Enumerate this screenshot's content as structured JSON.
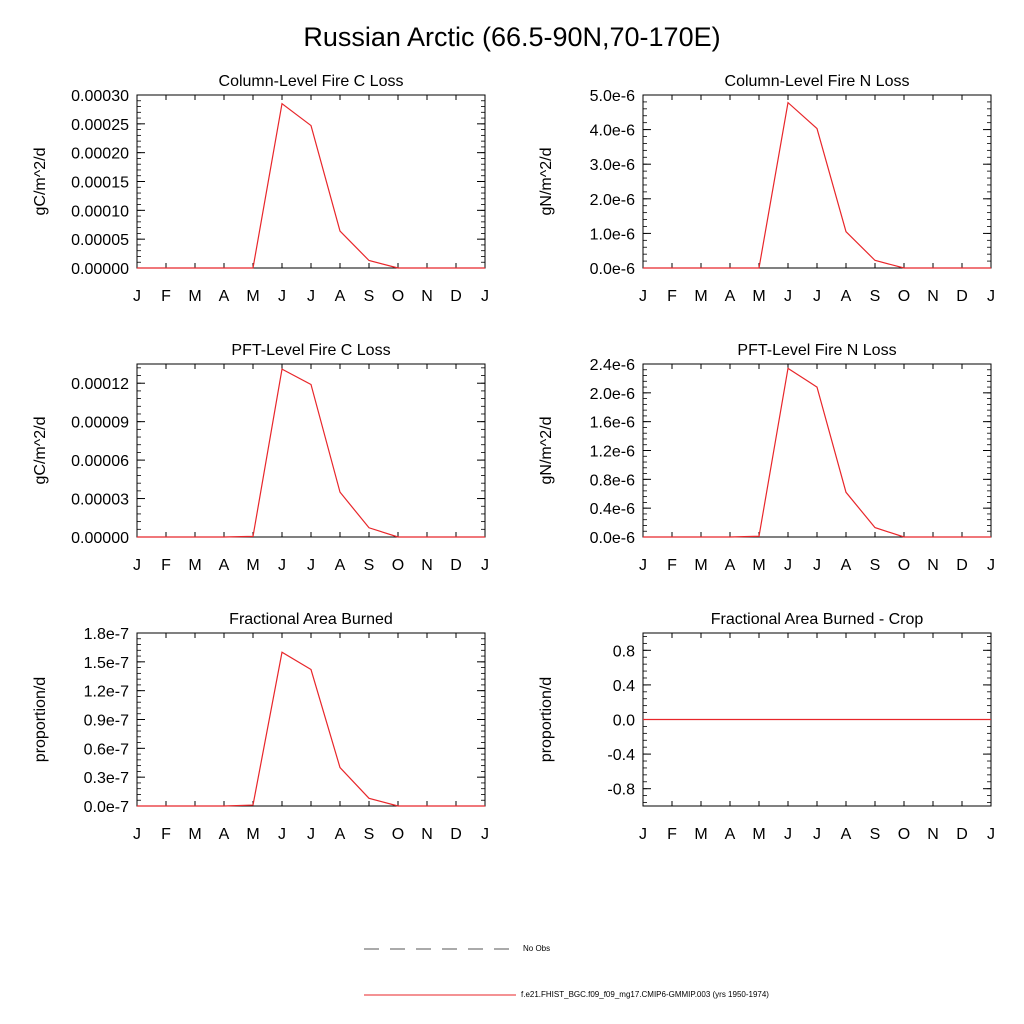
{
  "title": "Russian Arctic (66.5-90N,70-170E)",
  "months": [
    "J",
    "F",
    "M",
    "A",
    "M",
    "J",
    "J",
    "A",
    "S",
    "O",
    "N",
    "D",
    "J"
  ],
  "colors": {
    "model": "#e8262a",
    "axis": "#000000",
    "obs": "#555555"
  },
  "chart_data": [
    {
      "type": "line",
      "title": "Column-Level Fire C Loss",
      "ylabel": "gC/m^2/d",
      "ylim": [
        0,
        0.0003
      ],
      "yticks": [
        0,
        5e-05,
        0.0001,
        0.00015,
        0.0002,
        0.00025,
        0.0003
      ],
      "ytick_labels": [
        "0.00000",
        "0.00005",
        "0.00010",
        "0.00015",
        "0.00020",
        "0.00025",
        "0.00030"
      ],
      "values": [
        0,
        0,
        0,
        0,
        0,
        0.000285,
        0.000247,
        6.4e-05,
        1.3e-05,
        0,
        0,
        0,
        0
      ]
    },
    {
      "type": "line",
      "title": "Column-Level Fire N Loss",
      "ylabel": "gN/m^2/d",
      "ylim": [
        0,
        5e-06
      ],
      "yticks": [
        0,
        1e-06,
        2e-06,
        3e-06,
        4e-06,
        5e-06
      ],
      "ytick_labels": [
        "0.0e-6",
        "1.0e-6",
        "2.0e-6",
        "3.0e-6",
        "4.0e-6",
        "5.0e-6"
      ],
      "values": [
        0,
        0,
        0,
        0,
        0,
        4.78e-06,
        4.03e-06,
        1.05e-06,
        2.2e-07,
        0,
        0,
        0,
        0
      ]
    },
    {
      "type": "line",
      "title": "PFT-Level Fire C Loss",
      "ylabel": "gC/m^2/d",
      "ylim": [
        0,
        0.000135
      ],
      "yticks": [
        0,
        3e-05,
        6e-05,
        9e-05,
        0.00012
      ],
      "ytick_labels": [
        "0.00000",
        "0.00003",
        "0.00006",
        "0.00009",
        "0.00012"
      ],
      "values": [
        0,
        0,
        0,
        0,
        5e-07,
        0.000131,
        0.000119,
        3.5e-05,
        7.2e-06,
        0,
        0,
        0,
        0
      ]
    },
    {
      "type": "line",
      "title": "PFT-Level Fire N Loss",
      "ylabel": "gN/m^2/d",
      "ylim": [
        0,
        2.4e-06
      ],
      "yticks": [
        0,
        4e-07,
        8e-07,
        1.2e-06,
        1.6e-06,
        2e-06,
        2.4e-06
      ],
      "ytick_labels": [
        "0.0e-6",
        "0.4e-6",
        "0.8e-6",
        "1.2e-6",
        "1.6e-6",
        "2.0e-6",
        "2.4e-6"
      ],
      "values": [
        0,
        0,
        0,
        0,
        1e-08,
        2.34e-06,
        2.08e-06,
        6.2e-07,
        1.3e-07,
        0,
        0,
        0,
        0
      ]
    },
    {
      "type": "line",
      "title": "Fractional Area Burned",
      "ylabel": "proportion/d",
      "ylim": [
        0,
        1.8e-07
      ],
      "yticks": [
        0,
        3e-08,
        6e-08,
        9e-08,
        1.2e-07,
        1.5e-07,
        1.8e-07
      ],
      "ytick_labels": [
        "0.0e-7",
        "0.3e-7",
        "0.6e-7",
        "0.9e-7",
        "1.2e-7",
        "1.5e-7",
        "1.8e-7"
      ],
      "values": [
        0,
        0,
        0,
        0,
        1e-09,
        1.6e-07,
        1.42e-07,
        4e-08,
        8e-09,
        0,
        0,
        0,
        0
      ]
    },
    {
      "type": "line",
      "title": "Fractional Area Burned - Crop",
      "ylabel": "proportion/d",
      "ylim": [
        -1,
        1
      ],
      "yticks": [
        -0.8,
        -0.4,
        0,
        0.4,
        0.8
      ],
      "ytick_labels": [
        "-0.8",
        "-0.4",
        "0.0",
        "0.4",
        "0.8"
      ],
      "values": [
        0,
        0,
        0,
        0,
        0,
        0,
        0,
        0,
        0,
        0,
        0,
        0,
        0
      ]
    }
  ],
  "legend": {
    "obs_label": "No Obs",
    "model_label": "f.e21.FHIST_BGC.f09_f09_mg17.CMIP6-GMMIP.003 (yrs 1950-1974)"
  }
}
